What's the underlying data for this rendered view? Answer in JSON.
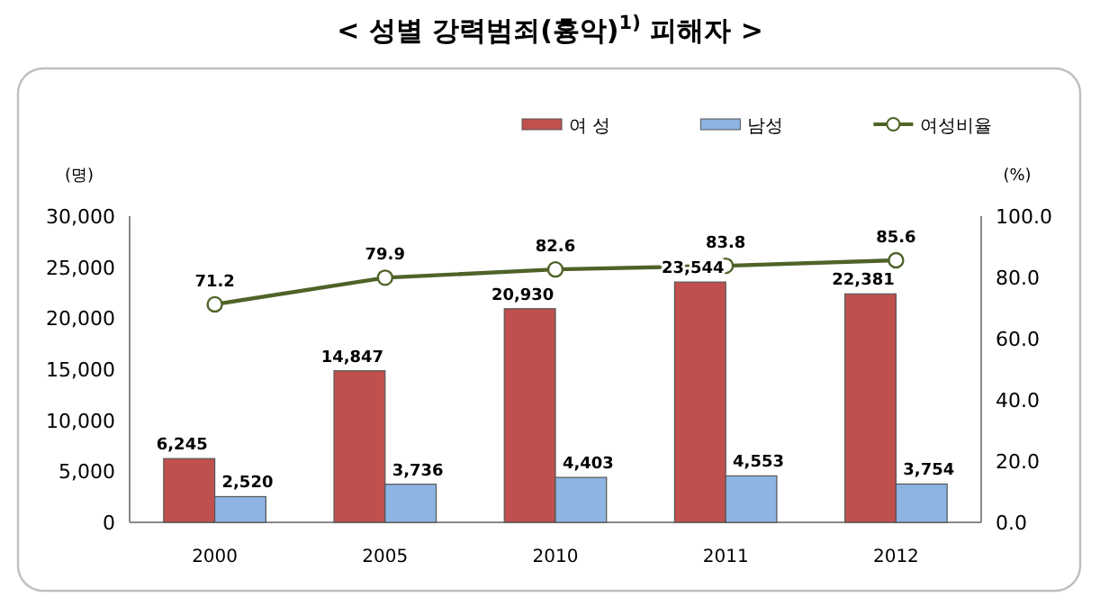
{
  "chart_data": {
    "type": "bar",
    "title": "< 성별 강력범죄(흉악)$^{1)}$ 피해자 >",
    "ylabel": "(명)",
    "y2label": "(%)",
    "categories": [
      "2000",
      "2005",
      "2010",
      "2011",
      "2012"
    ],
    "series": [
      {
        "name": "여 성",
        "color": "#c0504d",
        "values": [
          6245,
          14847,
          20930,
          23544,
          22381
        ],
        "value_labels": [
          "6,245",
          "14,847",
          "20,930",
          "23,544",
          "22,381"
        ]
      },
      {
        "name": "남성",
        "color": "#8db4e2",
        "values": [
          2520,
          3736,
          4403,
          4553,
          3754
        ],
        "value_labels": [
          "2,520",
          "3,736",
          "4,403",
          "4,553",
          "3,754"
        ]
      },
      {
        "name": "여성비율",
        "type": "line",
        "axis": "y2",
        "color": "#4f6228",
        "marker": "circle",
        "values": [
          71.2,
          79.9,
          82.6,
          83.8,
          85.6
        ],
        "value_labels": [
          "71.2",
          "79.9",
          "82.6",
          "83.8",
          "85.6"
        ]
      }
    ],
    "ylim": [
      0,
      30000
    ],
    "yticks": [
      0,
      {
        "value": 5000,
        "label": "5,000"
      },
      {
        "value": 10000,
        "label": "10,000"
      },
      {
        "value": 15000,
        "label": "15,000"
      },
      {
        "value": 20000,
        "label": "20,000"
      },
      {
        "value": 25000,
        "label": "25,000"
      },
      {
        "value": 30000,
        "label": "30,000"
      }
    ],
    "y2lim": [
      0,
      100
    ],
    "y2ticks": [
      {
        "value": 0,
        "label": "0.0"
      },
      {
        "value": 20,
        "label": "20.0"
      },
      {
        "value": 40,
        "label": "40.0"
      },
      {
        "value": 60,
        "label": "60.0"
      },
      {
        "value": 80,
        "label": "80.0"
      },
      {
        "value": 100,
        "label": "100.0"
      }
    ],
    "legend": "top right",
    "grid": false
  }
}
